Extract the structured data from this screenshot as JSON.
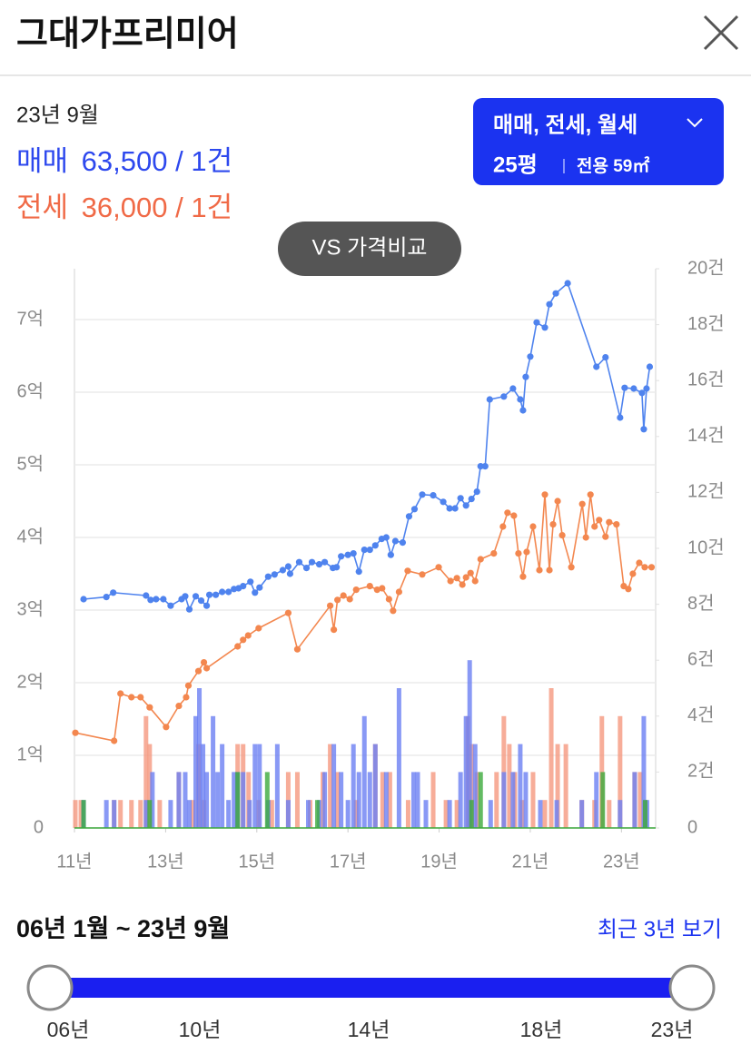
{
  "header": {
    "title": "그대가프리미어"
  },
  "summary": {
    "date": "23년 9월",
    "sale": {
      "label": "매매",
      "value": "63,500 / 1건"
    },
    "jeonse": {
      "label": "전세",
      "value": "36,000 / 1건"
    }
  },
  "filter": {
    "types": "매매, 전세, 월세",
    "pyeong": "25평",
    "area": "전용 59㎡"
  },
  "compare_button": "VS 가격비교",
  "chart_data": {
    "type": "line",
    "grid": true,
    "xlim": [
      11,
      23.75
    ],
    "xticks": [
      {
        "value": 11,
        "label": "11년"
      },
      {
        "value": 13,
        "label": "13년"
      },
      {
        "value": 15,
        "label": "15년"
      },
      {
        "value": 17,
        "label": "17년"
      },
      {
        "value": 19,
        "label": "19년"
      },
      {
        "value": 21,
        "label": "21년"
      },
      {
        "value": 23,
        "label": "23년"
      }
    ],
    "ylim": [
      0,
      7.7
    ],
    "yticks": [
      0,
      {
        "value": 1,
        "label": "1억"
      },
      {
        "value": 2,
        "label": "2억"
      },
      {
        "value": 3,
        "label": "3억"
      },
      {
        "value": 4,
        "label": "4억"
      },
      {
        "value": 5,
        "label": "5억"
      },
      {
        "value": 6,
        "label": "6억"
      },
      {
        "value": 7,
        "label": "7억"
      }
    ],
    "y2lim": [
      0,
      20
    ],
    "y2ticks": [
      0,
      {
        "value": 2,
        "label": "2건"
      },
      {
        "value": 4,
        "label": "4건"
      },
      {
        "value": 6,
        "label": "6건"
      },
      {
        "value": 8,
        "label": "8건"
      },
      {
        "value": 10,
        "label": "10건"
      },
      {
        "value": 12,
        "label": "12건"
      },
      {
        "value": 14,
        "label": "14건"
      },
      {
        "value": 16,
        "label": "16건"
      },
      {
        "value": 18,
        "label": "18건"
      },
      {
        "value": 20,
        "label": "20건"
      }
    ],
    "series": [
      {
        "type": "bar",
        "axis": "y2",
        "color": "#f5987f",
        "x": [
          11.02,
          11.14,
          11.87,
          12.01,
          12.25,
          12.45,
          12.57,
          12.65,
          12.87,
          13.29,
          13.6,
          13.72,
          13.84,
          14.58,
          14.7,
          14.82,
          15.04,
          15.33,
          15.69,
          15.89,
          16.17,
          16.45,
          16.61,
          16.77,
          17.18,
          17.6,
          17.76,
          17.92,
          18.32,
          18.87,
          19.15,
          19.39,
          19.63,
          19.71,
          19.83,
          20.26,
          20.42,
          20.54,
          20.66,
          20.82,
          21.06,
          21.32,
          21.46,
          21.6,
          21.78,
          22.13,
          22.41,
          22.57,
          22.73,
          22.97,
          23.29,
          23.41,
          23.52
        ],
        "values": [
          1,
          1,
          1,
          1,
          1,
          1,
          4,
          3,
          1,
          2,
          1,
          3,
          1,
          3,
          3,
          2,
          1,
          1,
          2,
          2,
          1,
          2,
          3,
          2,
          1,
          3,
          2,
          2,
          1,
          2,
          1,
          1,
          4,
          3,
          2,
          2,
          4,
          3,
          2,
          1,
          2,
          1,
          5,
          3,
          3,
          1,
          1,
          4,
          1,
          4,
          2,
          2,
          1
        ]
      },
      {
        "type": "bar",
        "axis": "y2",
        "color": "#6c80f2",
        "x": [
          11.2,
          11.7,
          11.87,
          12.57,
          12.71,
          13.11,
          13.29,
          13.43,
          13.52,
          13.66,
          13.74,
          13.82,
          13.9,
          14.04,
          14.14,
          14.24,
          14.38,
          14.5,
          14.58,
          14.7,
          14.84,
          14.96,
          15.06,
          15.25,
          15.45,
          15.69,
          16.13,
          16.37,
          16.49,
          16.69,
          16.85,
          17.0,
          17.12,
          17.24,
          17.36,
          17.48,
          17.6,
          17.84,
          18.12,
          18.44,
          18.53,
          18.71,
          19.23,
          19.47,
          19.59,
          19.67,
          19.79,
          20.13,
          20.42,
          20.62,
          20.78,
          20.9,
          21.22,
          21.58,
          22.13,
          22.45,
          22.97,
          23.29,
          23.49,
          23.56
        ],
        "values": [
          1,
          1,
          1,
          1,
          2,
          1,
          2,
          2,
          1,
          4,
          5,
          3,
          2,
          4,
          2,
          3,
          1,
          2,
          2,
          2,
          1,
          3,
          3,
          1,
          3,
          1,
          1,
          1,
          2,
          3,
          2,
          1,
          3,
          2,
          4,
          2,
          3,
          2,
          5,
          2,
          2,
          1,
          1,
          2,
          4,
          6,
          3,
          1,
          2,
          2,
          3,
          2,
          1,
          1,
          1,
          2,
          1,
          2,
          4,
          1
        ]
      },
      {
        "type": "bar",
        "axis": "y2",
        "color": "#3caa3c",
        "x": [
          11.2,
          12.65,
          14.58,
          15.23,
          16.33,
          19.71,
          19.91,
          22.59,
          23.52
        ],
        "values": [
          1,
          1,
          2,
          2,
          1,
          1,
          2,
          2,
          1
        ]
      },
      {
        "type": "line",
        "color": "#f3874f",
        "x": [
          11.02,
          11.87,
          12.01,
          12.25,
          12.45,
          12.65,
          13.01,
          13.29,
          13.45,
          13.5,
          13.72,
          13.84,
          13.9,
          14.58,
          14.7,
          14.81,
          15.04,
          15.69,
          15.89,
          16.61,
          16.69,
          16.77,
          16.9,
          17.04,
          17.18,
          17.48,
          17.64,
          17.75,
          17.9,
          17.99,
          18.12,
          18.31,
          18.63,
          18.99,
          19.25,
          19.39,
          19.51,
          19.59,
          19.69,
          19.79,
          19.91,
          20.2,
          20.4,
          20.5,
          20.64,
          20.74,
          20.84,
          20.92,
          21.06,
          21.2,
          21.32,
          21.42,
          21.5,
          21.6,
          21.7,
          21.9,
          22.14,
          22.22,
          22.32,
          22.41,
          22.51,
          22.65,
          22.73,
          22.89,
          23.05,
          23.15,
          23.25,
          23.39,
          23.51,
          23.66
        ],
        "values": [
          1.31,
          1.2,
          1.85,
          1.8,
          1.8,
          1.66,
          1.39,
          1.68,
          1.8,
          1.96,
          2.16,
          2.28,
          2.2,
          2.5,
          2.59,
          2.65,
          2.75,
          2.96,
          2.46,
          3.06,
          2.73,
          3.14,
          3.2,
          3.15,
          3.28,
          3.33,
          3.28,
          3.3,
          3.15,
          2.99,
          3.25,
          3.54,
          3.49,
          3.59,
          3.4,
          3.44,
          3.35,
          3.45,
          3.51,
          3.4,
          3.7,
          3.78,
          4.15,
          4.34,
          4.3,
          3.78,
          3.46,
          3.8,
          4.15,
          3.55,
          4.59,
          3.55,
          4.18,
          4.5,
          4.03,
          3.59,
          4.46,
          4.0,
          4.59,
          4.15,
          4.24,
          4.01,
          4.21,
          4.18,
          3.33,
          3.29,
          3.5,
          3.65,
          3.59,
          3.59
        ]
      },
      {
        "type": "line",
        "color": "#4f83ee",
        "x": [
          11.2,
          11.7,
          11.85,
          12.57,
          12.67,
          12.79,
          12.95,
          13.11,
          13.35,
          13.43,
          13.52,
          13.66,
          13.78,
          13.9,
          13.96,
          14.1,
          14.24,
          14.38,
          14.5,
          14.6,
          14.7,
          14.86,
          14.96,
          15.06,
          15.25,
          15.39,
          15.57,
          15.69,
          15.73,
          15.93,
          16.09,
          16.21,
          16.37,
          16.49,
          16.67,
          16.75,
          16.85,
          17.0,
          17.12,
          17.24,
          17.36,
          17.48,
          17.6,
          17.74,
          17.84,
          17.94,
          18.04,
          18.2,
          18.34,
          18.46,
          18.63,
          18.87,
          19.09,
          19.23,
          19.35,
          19.47,
          19.59,
          19.71,
          19.83,
          19.91,
          20.01,
          20.11,
          20.42,
          20.62,
          20.78,
          20.84,
          20.9,
          21.0,
          21.14,
          21.32,
          21.42,
          21.56,
          21.82,
          22.45,
          22.65,
          22.97,
          23.07,
          23.27,
          23.45,
          23.49,
          23.55,
          23.62
        ],
        "values": [
          3.15,
          3.18,
          3.24,
          3.2,
          3.14,
          3.15,
          3.15,
          3.06,
          3.15,
          3.19,
          3.01,
          3.19,
          3.13,
          3.06,
          3.21,
          3.21,
          3.25,
          3.25,
          3.29,
          3.3,
          3.33,
          3.39,
          3.24,
          3.31,
          3.46,
          3.49,
          3.55,
          3.6,
          3.5,
          3.66,
          3.58,
          3.66,
          3.63,
          3.66,
          3.58,
          3.59,
          3.74,
          3.76,
          3.78,
          3.53,
          3.83,
          3.83,
          3.89,
          3.98,
          4.0,
          3.76,
          3.95,
          3.93,
          4.29,
          4.39,
          4.59,
          4.58,
          4.49,
          4.4,
          4.4,
          4.54,
          4.44,
          4.53,
          4.63,
          4.98,
          4.98,
          5.9,
          5.94,
          6.05,
          5.9,
          5.75,
          6.21,
          6.49,
          6.96,
          6.89,
          7.21,
          7.36,
          7.5,
          6.35,
          6.48,
          5.65,
          6.06,
          6.05,
          5.99,
          5.49,
          6.05,
          6.35
        ]
      }
    ]
  },
  "range": {
    "label": "06년 1월 ~ 23년 9월",
    "recent": "최근 3년 보기",
    "ticks": [
      "06년",
      "10년",
      "14년",
      "18년",
      "23년"
    ]
  }
}
